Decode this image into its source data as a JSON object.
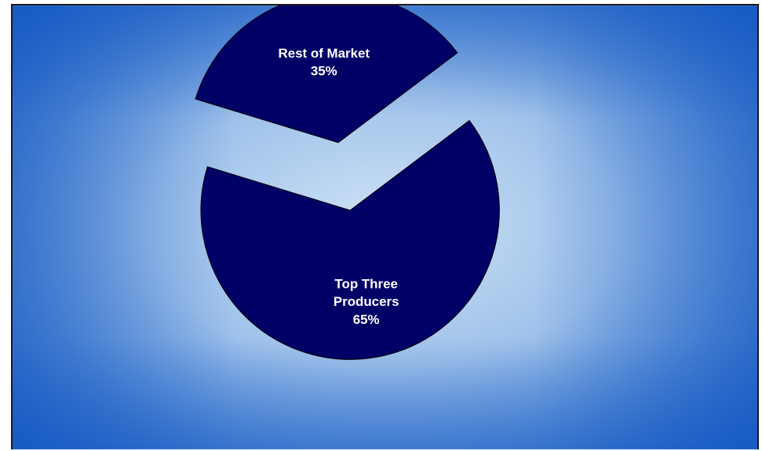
{
  "chart_data": {
    "type": "pie",
    "slices": [
      {
        "label_lines": [
          "Top Three",
          "Producers"
        ],
        "value_label": "65%",
        "value": 65,
        "color": "#000066",
        "exploded": false
      },
      {
        "label_lines": [
          "Rest of Market"
        ],
        "value_label": "35%",
        "value": 35,
        "color": "#000066",
        "exploded": true
      }
    ],
    "background": {
      "center_color": "#cfe3f6",
      "edge_color": "#1d63c8"
    },
    "legend": "none"
  }
}
